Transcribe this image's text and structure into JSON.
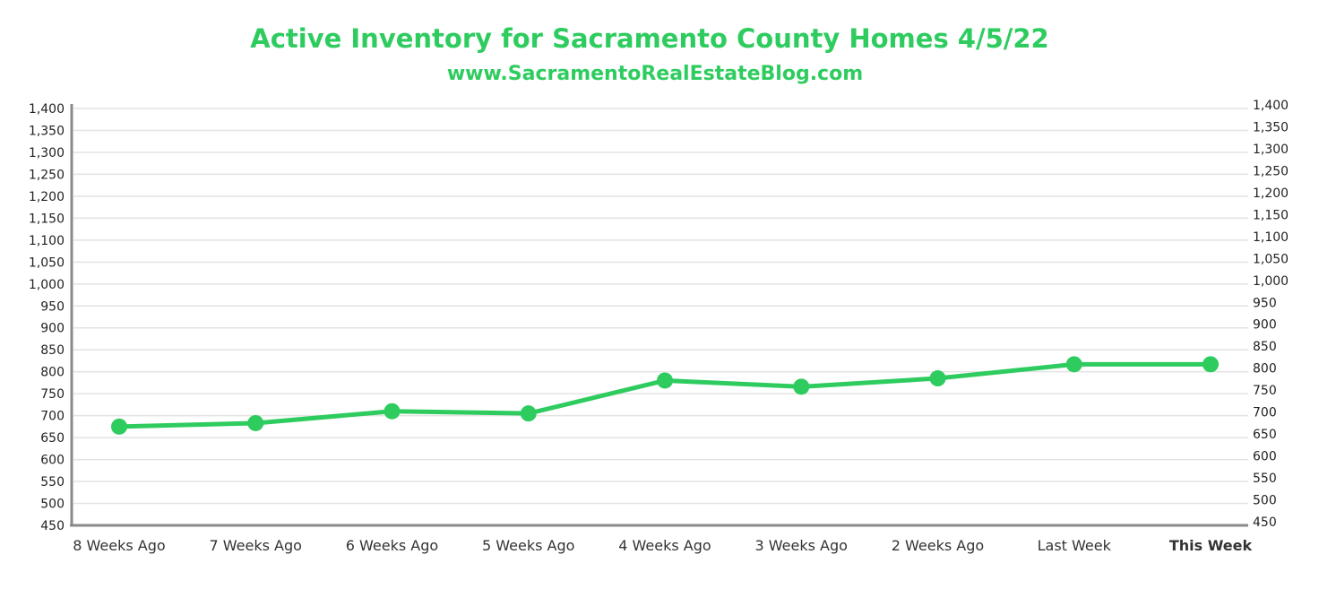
{
  "chart_data": {
    "type": "line",
    "title": "Active Inventory for Sacramento County Homes 4/5/22",
    "subtitle": "www.SacramentoRealEstateBlog.com",
    "categories": [
      "8 Weeks Ago",
      "7 Weeks Ago",
      "6 Weeks Ago",
      "5 Weeks Ago",
      "4 Weeks Ago",
      "3 Weeks Ago",
      "2 Weeks Ago",
      "Last Week",
      "This Week"
    ],
    "highlight_category": "This Week",
    "series": [
      {
        "values": [
          675,
          683,
          710,
          705,
          780,
          766,
          785,
          817,
          817
        ]
      }
    ],
    "ylim": [
      450,
      1400
    ],
    "yticks": [
      "450",
      "500",
      "550",
      "600",
      "650",
      "700",
      "750",
      "800",
      "850",
      "900",
      "950",
      "1,000",
      "1,050",
      "1,100",
      "1,150",
      "1,200",
      "1,250",
      "1,300",
      "1,350",
      "1,400"
    ],
    "right_axis": true,
    "grid": true,
    "legend": "none",
    "colors": {
      "line": "#2ecc5f",
      "title": "#2ecc5f",
      "highlight_label": "#2ecc5f",
      "grid": "#e3e3e3",
      "axis": "#8a8a8a",
      "text": "#222222"
    }
  }
}
